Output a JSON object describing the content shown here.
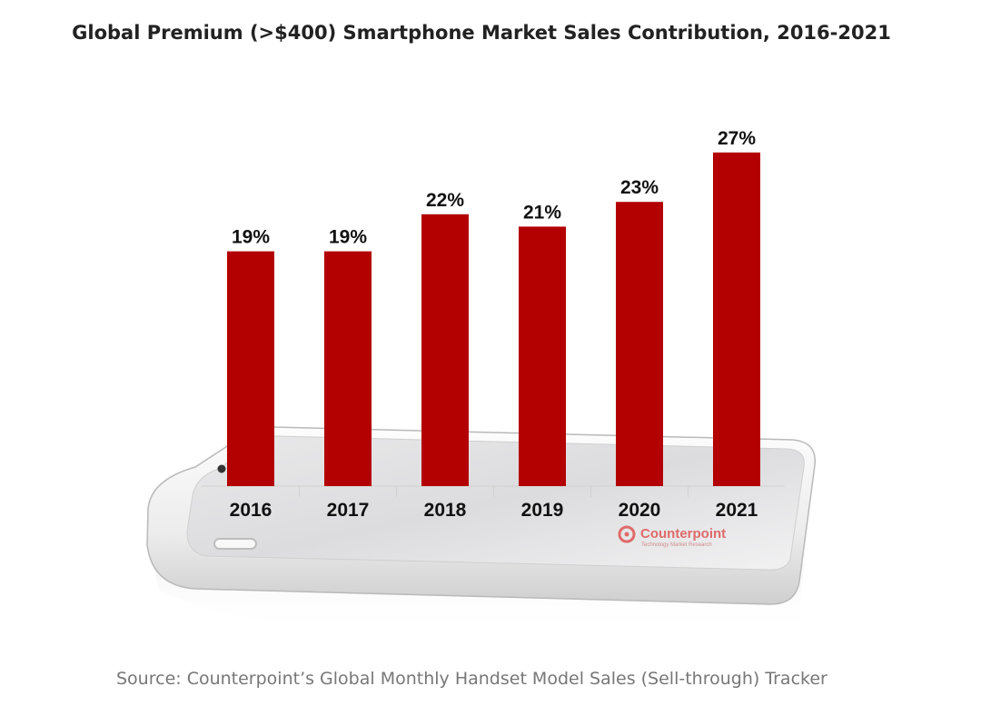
{
  "chart_data": {
    "type": "bar",
    "title": "Global Premium (>$400) Smartphone Market Sales Contribution, 2016-2021",
    "categories": [
      "2016",
      "2017",
      "2018",
      "2019",
      "2020",
      "2021"
    ],
    "values": [
      19,
      19,
      22,
      21,
      23,
      27
    ],
    "value_labels": [
      "19%",
      "19%",
      "22%",
      "21%",
      "23%",
      "27%"
    ],
    "ylim": [
      0,
      30
    ],
    "unit": "%",
    "xlabel": "",
    "ylabel": "",
    "bar_color": "#B30000",
    "grid": false,
    "legend": "none"
  },
  "logo": {
    "name": "Counterpoint",
    "tagline": "Technology Market Research"
  },
  "source": "Source: Counterpoint’s Global Monthly Handset Model Sales (Sell-through) Tracker"
}
